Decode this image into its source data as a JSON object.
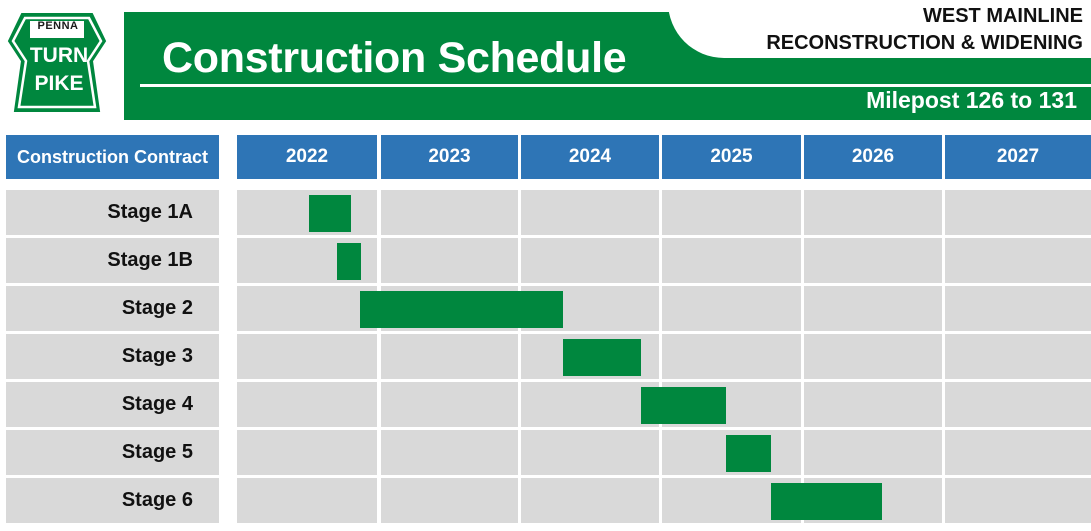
{
  "header": {
    "logo": {
      "top": "PENNA",
      "middle": "TURN",
      "bottom": "PIKE"
    },
    "title": "Construction Schedule",
    "project_line1": "WEST MAINLINE",
    "project_line2": "RECONSTRUCTION & WIDENING",
    "milepost": "Milepost 126 to 131"
  },
  "colors": {
    "brand_green": "#00873e",
    "header_blue": "#2e75b6",
    "cell_gray": "#d9d9d9"
  },
  "chart_data": {
    "type": "bar",
    "subtype": "gantt",
    "column_header": "Construction Contract",
    "years": [
      "2022",
      "2023",
      "2024",
      "2025",
      "2026",
      "2027"
    ],
    "x_range": [
      2022.0,
      2028.0
    ],
    "tasks": [
      {
        "name": "Stage 1A",
        "start": 2022.5,
        "end": 2022.8
      },
      {
        "name": "Stage 1B",
        "start": 2022.7,
        "end": 2022.87
      },
      {
        "name": "Stage 2",
        "start": 2022.86,
        "end": 2024.3
      },
      {
        "name": "Stage 3",
        "start": 2024.3,
        "end": 2024.85
      },
      {
        "name": "Stage 4",
        "start": 2024.85,
        "end": 2025.45
      },
      {
        "name": "Stage 5",
        "start": 2025.45,
        "end": 2025.77
      },
      {
        "name": "Stage 6",
        "start": 2025.77,
        "end": 2026.55
      }
    ]
  }
}
